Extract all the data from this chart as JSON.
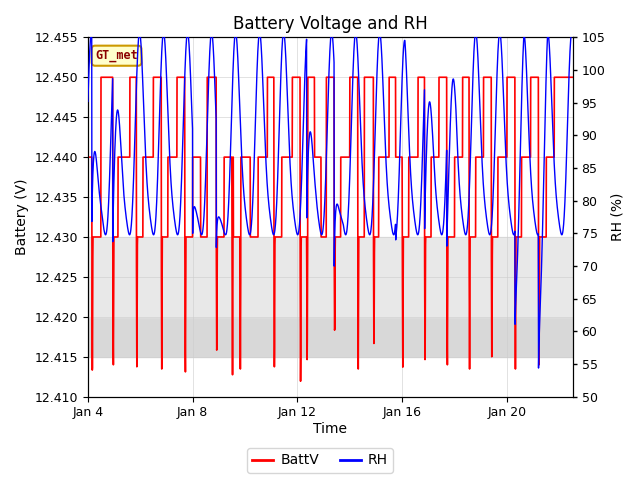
{
  "title": "Battery Voltage and RH",
  "xlabel": "Time",
  "ylabel_left": "Battery (V)",
  "ylabel_right": "RH (%)",
  "ylim_left": [
    12.41,
    12.455
  ],
  "ylim_right": [
    50,
    105
  ],
  "yticks_left": [
    12.41,
    12.415,
    12.42,
    12.425,
    12.43,
    12.435,
    12.44,
    12.445,
    12.45,
    12.455
  ],
  "yticks_right": [
    50,
    55,
    60,
    65,
    70,
    75,
    80,
    85,
    90,
    95,
    100,
    105
  ],
  "xtick_positions": [
    0,
    4,
    8,
    12,
    16
  ],
  "xtick_labels": [
    "Jan 4",
    "Jan 8",
    "Jan 12",
    "Jan 16",
    "Jan 20"
  ],
  "legend_labels": [
    "BattV",
    "RH"
  ],
  "legend_colors": [
    "red",
    "blue"
  ],
  "watermark_text": "GT_met",
  "watermark_bg": "#ffffcc",
  "watermark_border": "#cc9900",
  "grid_color": "#cccccc",
  "fig_bg": "#ffffff",
  "ax_bg": "#ffffff",
  "band1_color": "#e8e8e8",
  "band2_color": "#d8d8d8",
  "title_fontsize": 12,
  "axis_label_fontsize": 10,
  "tick_fontsize": 9,
  "n_days": 18.5,
  "batt_high1": 12.44,
  "batt_high2": 12.45,
  "batt_low": 12.43,
  "batt_spike_low": 12.41
}
